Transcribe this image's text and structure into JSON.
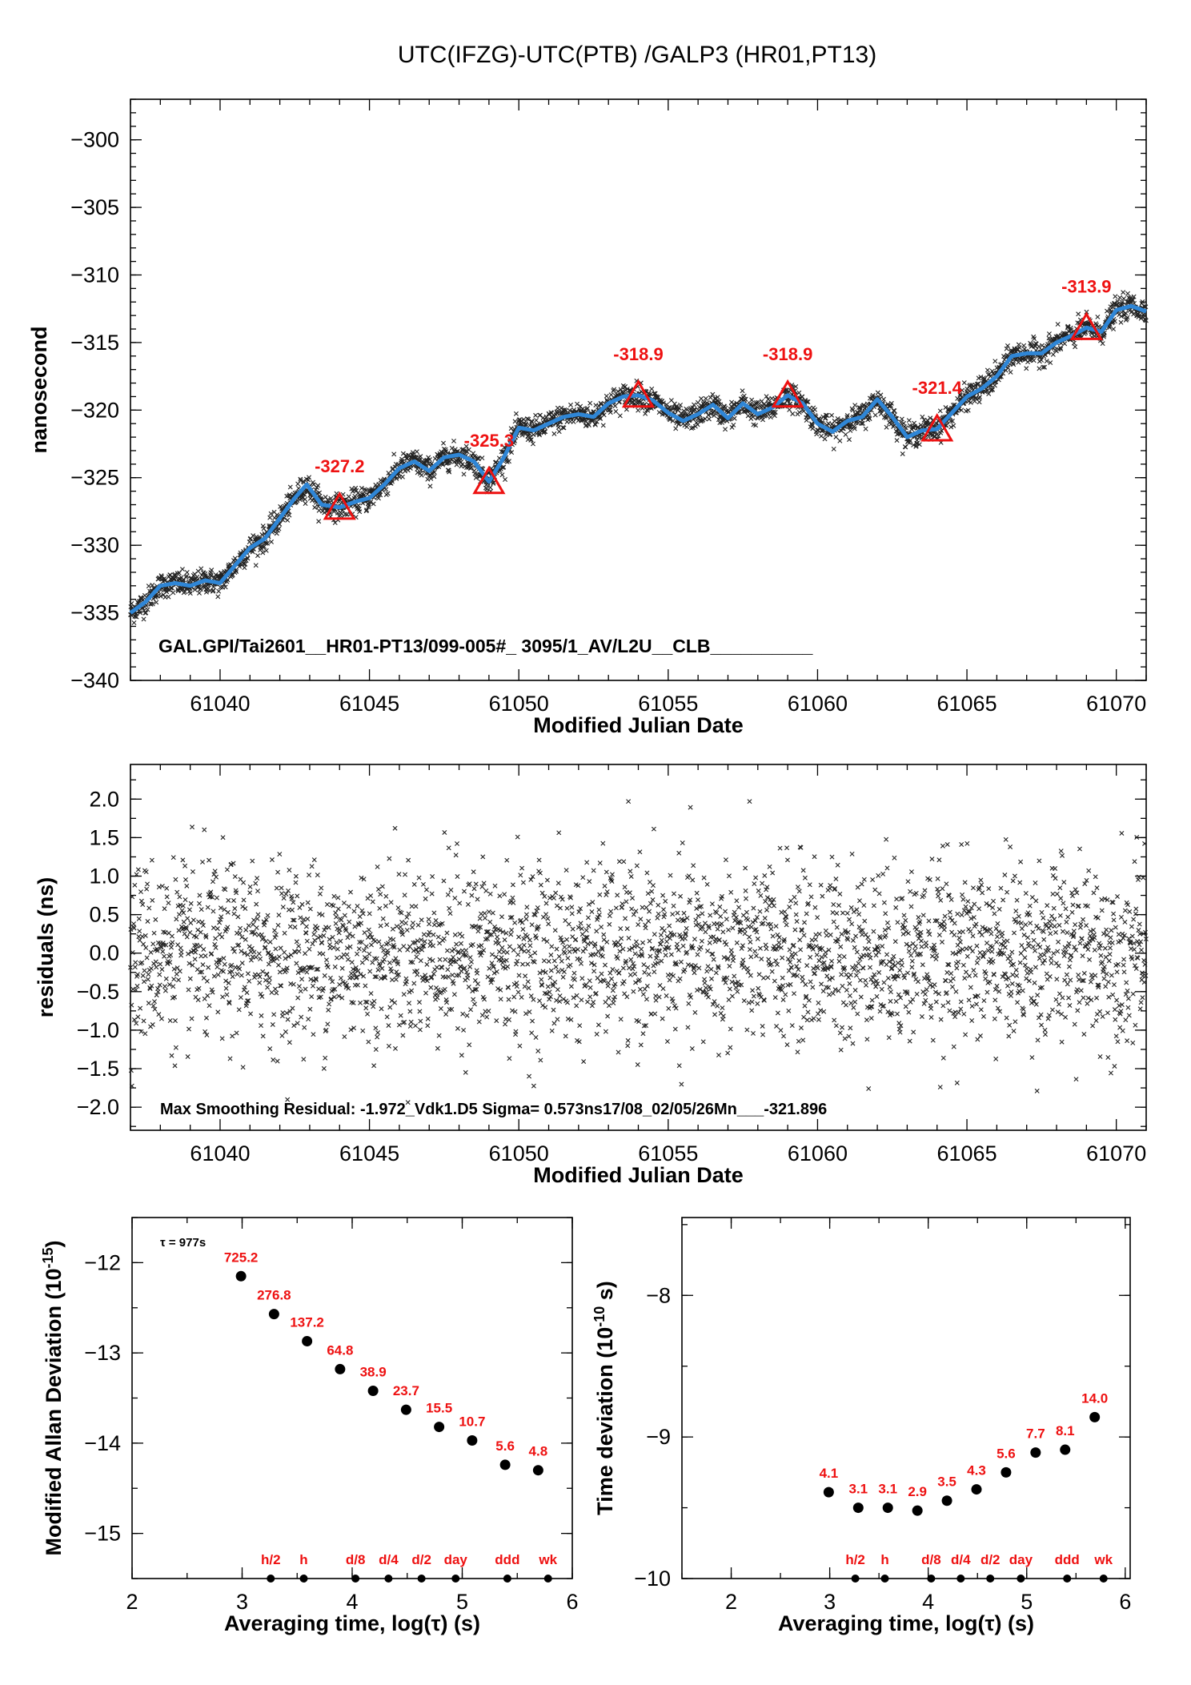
{
  "title": "UTC(IFZG)-UTC(PTB)  /GALP3  (HR01,PT13)",
  "colors": {
    "smooth_line": "#2f86d6",
    "markers": "#ee1111",
    "data": "#222222",
    "labels": "#ee1111"
  },
  "chart_data": [
    {
      "type": "scatter",
      "name_id": "time-series",
      "xlabel": "Modified Julian Date",
      "ylabel": "nanosecond",
      "xlim": [
        61037,
        61071
      ],
      "ylim": [
        -340,
        -297
      ],
      "xticks": [
        61040,
        61045,
        61050,
        61055,
        61060,
        61065,
        61070
      ],
      "yticks": [
        -340,
        -335,
        -330,
        -325,
        -320,
        -315,
        -310,
        -305,
        -300
      ],
      "smooth_curve": {
        "x": [
          61037,
          61037.5,
          61038,
          61038.5,
          61039,
          61039.5,
          61040,
          61040.5,
          61041,
          61041.5,
          61042,
          61042.5,
          61042.9,
          61043.4,
          61044,
          61044.5,
          61045,
          61045.5,
          61046,
          61046.5,
          61047,
          61047.5,
          61048,
          61048.5,
          61049,
          61049.5,
          61050,
          61050.5,
          61051,
          61051.5,
          61052,
          61052.5,
          61053,
          61053.5,
          61054,
          61054.5,
          61055,
          61055.5,
          61056,
          61056.5,
          61057,
          61057.5,
          61058,
          61058.5,
          61059,
          61059.5,
          61060,
          61060.5,
          61061,
          61061.5,
          61062,
          61062.5,
          61063,
          61063.5,
          61064,
          61064.5,
          61065,
          61065.5,
          61066,
          61066.5,
          61067,
          61067.5,
          61068,
          61068.5,
          61069,
          61069.5,
          61070,
          61070.5,
          61071
        ],
        "y": [
          -335,
          -334.2,
          -333,
          -332.8,
          -333,
          -332.6,
          -332.8,
          -331.5,
          -330.2,
          -329.5,
          -328,
          -326.5,
          -325.5,
          -327,
          -327.2,
          -326.8,
          -326.5,
          -325.5,
          -324.3,
          -323.8,
          -324.5,
          -323.5,
          -323.3,
          -323.8,
          -325.3,
          -323.5,
          -321.3,
          -321.5,
          -321,
          -320.5,
          -320.3,
          -320.5,
          -319.5,
          -319,
          -318.9,
          -319.3,
          -320.2,
          -320.8,
          -320.3,
          -319.6,
          -320.6,
          -319.5,
          -320.3,
          -319.8,
          -318.9,
          -319.5,
          -321,
          -321.6,
          -320.8,
          -320.5,
          -319.2,
          -320.5,
          -322,
          -321.5,
          -321.4,
          -320.2,
          -319,
          -318.4,
          -317.5,
          -316,
          -315.8,
          -315.8,
          -315,
          -314.5,
          -313.9,
          -314.2,
          -312.6,
          -312.3,
          -312.7
        ]
      },
      "markers": {
        "x": [
          61044,
          61049,
          61054,
          61059,
          61064,
          61069
        ],
        "y": [
          -327.2,
          -325.3,
          -318.9,
          -318.9,
          -321.4,
          -313.9
        ],
        "labels": [
          "-327.2",
          "-325.3",
          "-318.9",
          "-318.9",
          "-321.4",
          "-313.9"
        ]
      },
      "footnote": "GAL.GPI/Tai2601__HR01-PT13/099-005#_  3095/1_AV/L2U__CLB__________"
    },
    {
      "type": "scatter",
      "name_id": "residuals",
      "xlabel": "Modified Julian Date",
      "ylabel": "residuals (ns)",
      "xlim": [
        61037,
        61071
      ],
      "ylim": [
        -2.3,
        2.45
      ],
      "xticks": [
        61040,
        61045,
        61050,
        61055,
        61060,
        61065,
        61070
      ],
      "yticks": [
        -2.0,
        -1.5,
        -1.0,
        -0.5,
        0.0,
        0.5,
        1.0,
        1.5,
        2.0
      ],
      "ytick_labels": [
        "−2.0",
        "−1.5",
        "−1.0",
        "−0.5",
        "0.0",
        "0.5",
        "1.0",
        "1.5",
        "2.0"
      ],
      "sigma": 0.573,
      "footnote": "Max Smoothing Residual: -1.972_Vdk1.D5  Sigma= 0.573ns17/08_02/05/26Mn___-321.896"
    },
    {
      "type": "scatter",
      "name_id": "modified-allan-deviation",
      "xlabel": "Averaging time, log(τ) (s)",
      "ylabel_main": "Modified Allan Deviation (10",
      "ylabel_exp": "-15",
      "ylabel_tail": ")",
      "xlim": [
        2,
        6
      ],
      "ylim": [
        -15.5,
        -11.5
      ],
      "xticks": [
        2,
        3,
        4,
        5,
        6
      ],
      "yticks": [
        -15,
        -14,
        -13,
        -12
      ],
      "tau_note": "τ = 977s",
      "x": [
        2.99,
        3.29,
        3.59,
        3.89,
        4.19,
        4.49,
        4.79,
        5.09,
        5.39,
        5.69
      ],
      "y": [
        -12.15,
        -12.57,
        -12.87,
        -13.18,
        -13.42,
        -13.63,
        -13.82,
        -13.97,
        -14.24,
        -14.3
      ],
      "labels": [
        "725.2",
        "276.8",
        "137.2",
        "64.8",
        "38.9",
        "23.7",
        "15.5",
        "10.7",
        "5.6",
        "4.8"
      ],
      "markers_x": [
        3.26,
        3.56,
        4.03,
        4.33,
        4.63,
        4.94,
        5.41,
        5.78
      ],
      "markers_y": -15.5,
      "marker_labels": [
        "h/2",
        "h",
        "d/8",
        "d/4",
        "d/2",
        "day",
        "ddd",
        "wk"
      ]
    },
    {
      "type": "scatter",
      "name_id": "time-deviation",
      "xlabel": "Averaging time, log(τ) (s)",
      "ylabel_main": "Time deviation (10",
      "ylabel_exp": "-10",
      "ylabel_tail": " s)",
      "xlim": [
        1.5,
        6.05
      ],
      "ylim": [
        -10.0,
        -7.45
      ],
      "xticks": [
        2,
        3,
        4,
        5,
        6
      ],
      "yticks": [
        -10,
        -9,
        -8
      ],
      "x": [
        2.99,
        3.29,
        3.59,
        3.89,
        4.19,
        4.49,
        4.79,
        5.09,
        5.39,
        5.69
      ],
      "y": [
        -9.39,
        -9.5,
        -9.5,
        -9.52,
        -9.45,
        -9.37,
        -9.25,
        -9.11,
        -9.09,
        -8.86
      ],
      "labels": [
        "4.1",
        "3.1",
        "3.1",
        "2.9",
        "3.5",
        "4.3",
        "5.6",
        "7.7",
        "8.1",
        "14.0"
      ],
      "markers_x": [
        3.26,
        3.56,
        4.03,
        4.33,
        4.63,
        4.94,
        5.41,
        5.78
      ],
      "markers_y": -10.0,
      "marker_labels": [
        "h/2",
        "h",
        "d/8",
        "d/4",
        "d/2",
        "day",
        "ddd",
        "wk"
      ]
    }
  ]
}
